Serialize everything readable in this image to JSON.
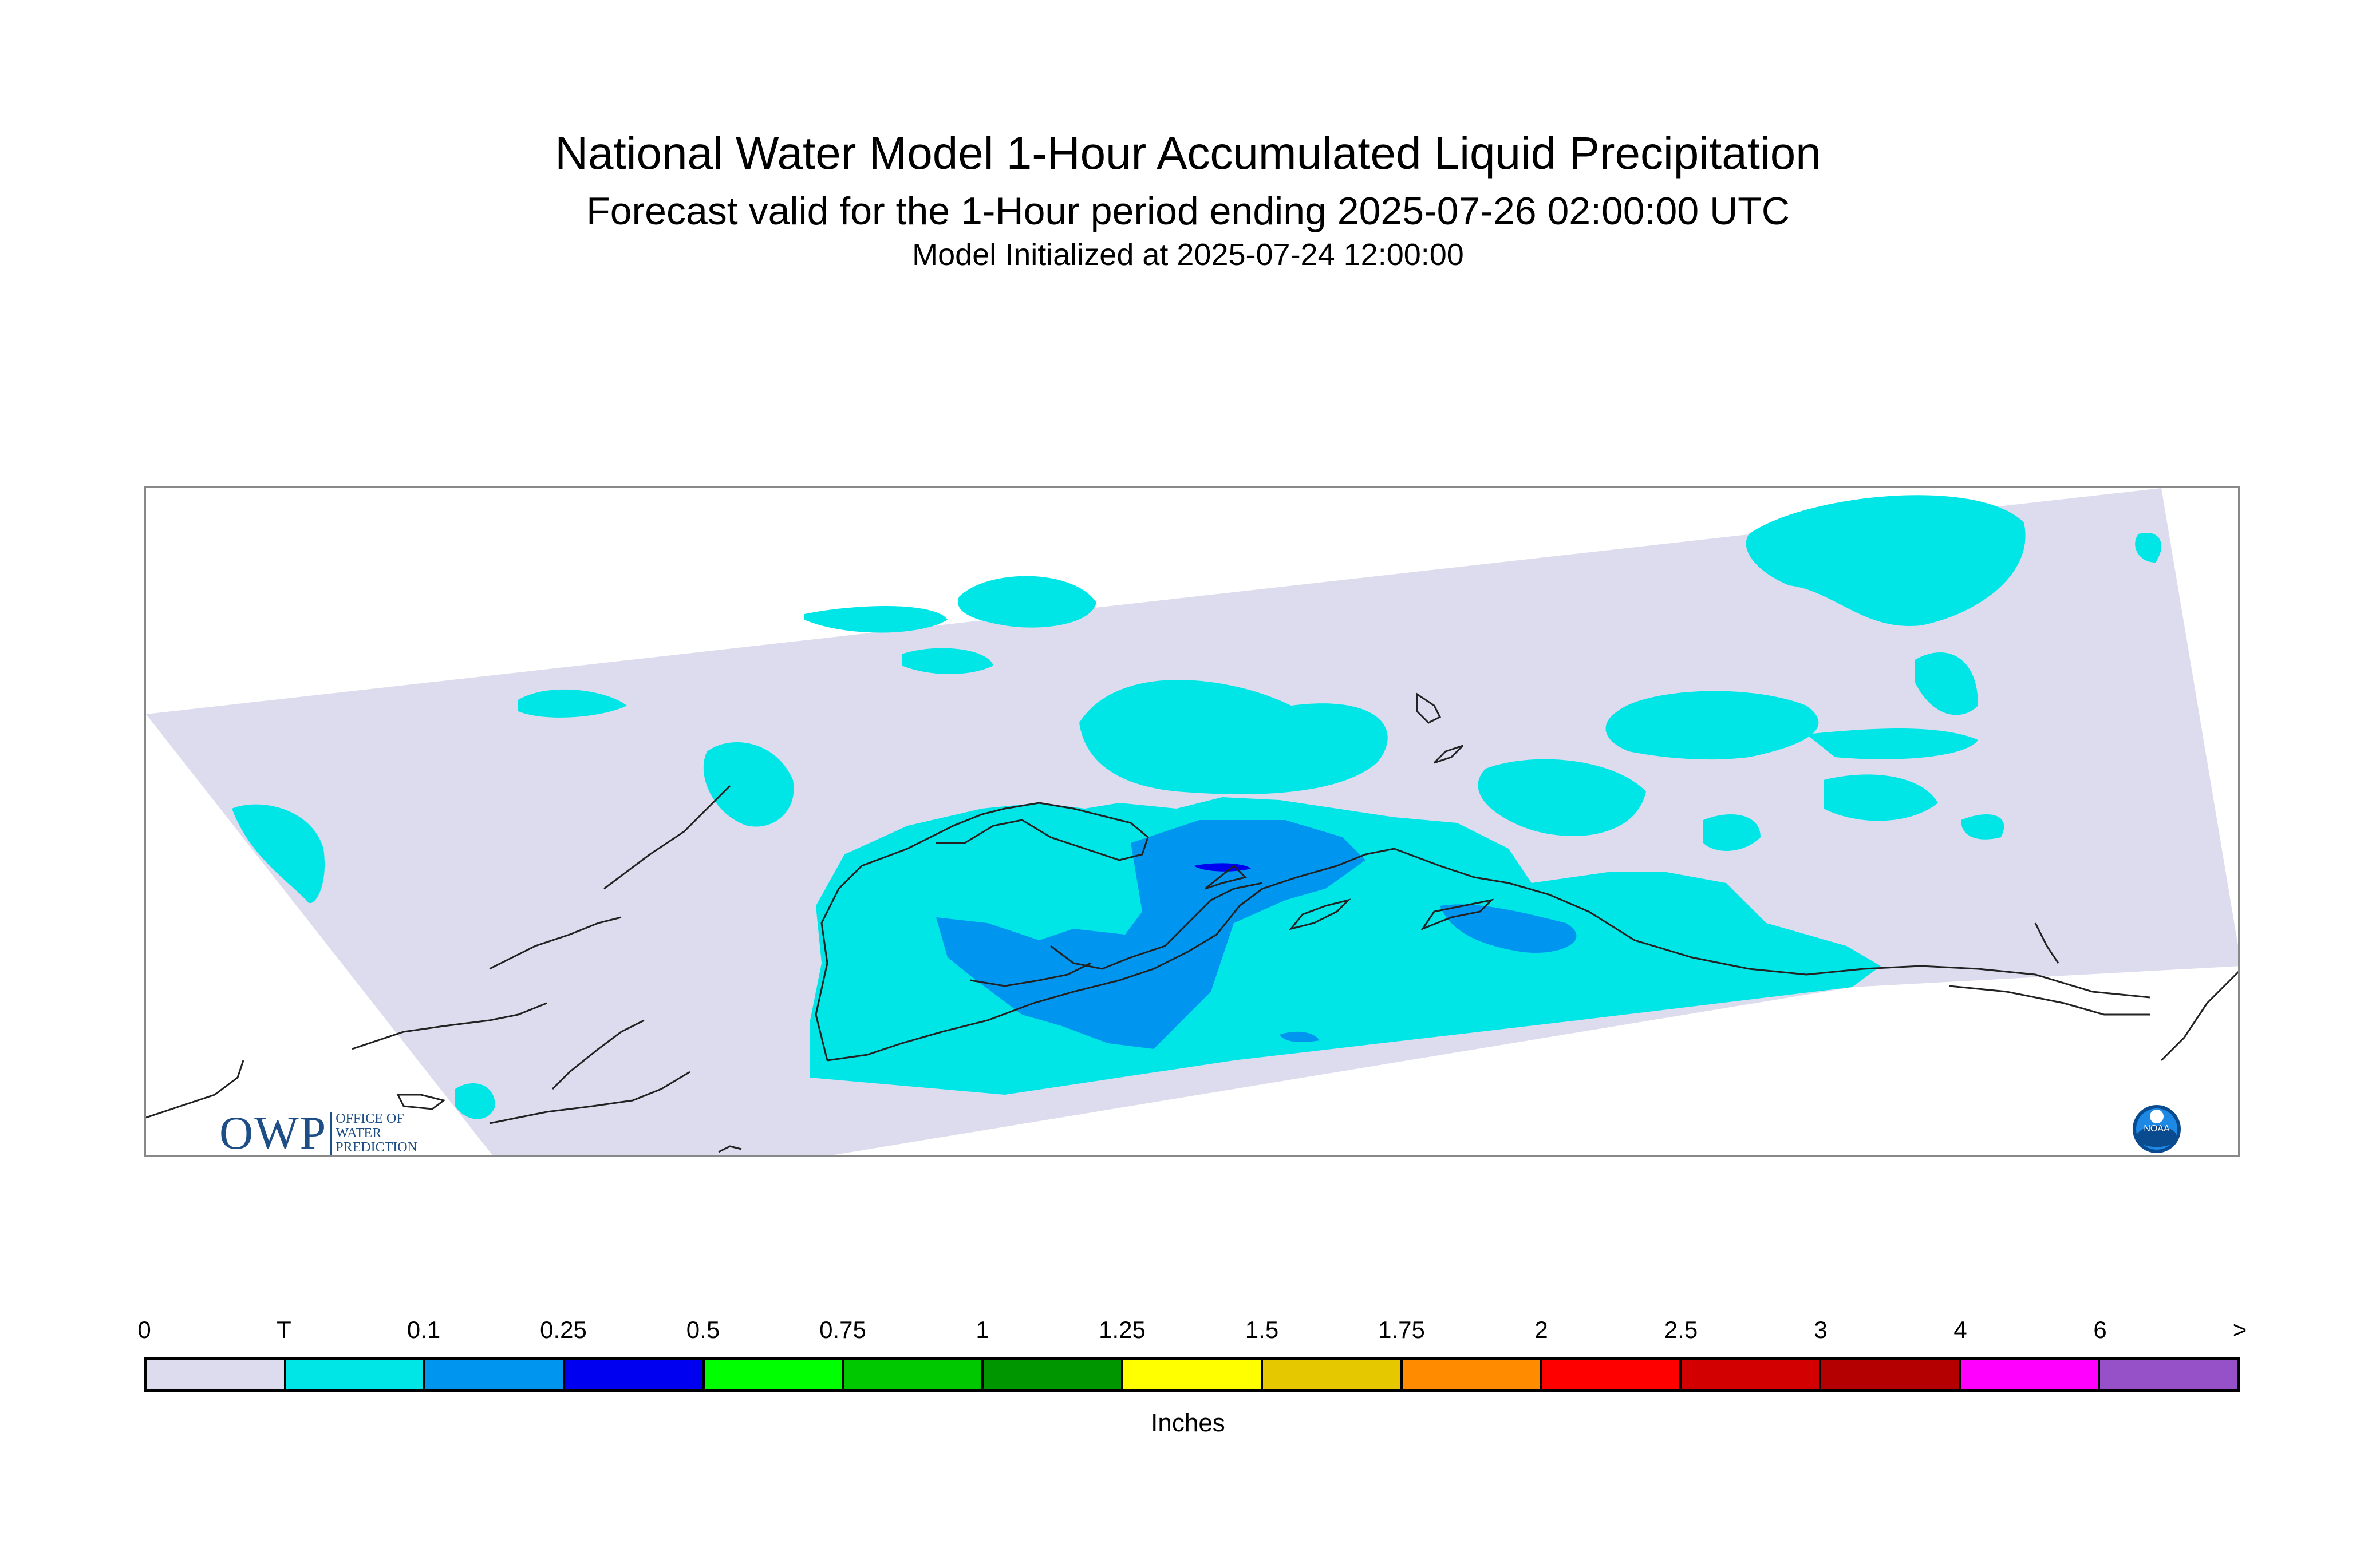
{
  "title": {
    "main": "National Water Model 1-Hour Accumulated Liquid Precipitation",
    "forecast": "Forecast valid for the 1-Hour period ending 2025-07-26 02:00:00 UTC",
    "initialized": "Model Initialized at 2025-07-24 12:00:00"
  },
  "logo": {
    "owp_text": "OWP",
    "owp_sub": [
      "OFFICE OF",
      "WATER",
      "PREDICTION"
    ],
    "noaa_text": "NOAA"
  },
  "legend": {
    "labels": [
      "0",
      "T",
      "0.1",
      "0.25",
      "0.5",
      "0.75",
      "1",
      "1.25",
      "1.5",
      "1.75",
      "2",
      "2.5",
      "3",
      "4",
      "6",
      ">"
    ],
    "colors": [
      "#dcdcee",
      "#00e6e6",
      "#0096f0",
      "#0000f0",
      "#00ff00",
      "#00c800",
      "#009600",
      "#ffff00",
      "#e6c800",
      "#ff8c00",
      "#ff0000",
      "#d20000",
      "#b40000",
      "#ff00ff",
      "#9650c8"
    ],
    "units": "Inches"
  },
  "map": {
    "domain_color": "#dcdcee",
    "trace_color": "#00e6e6",
    "light_color": "#0096f0",
    "moderate_color": "#0000f0",
    "coast_color": "#222222"
  }
}
